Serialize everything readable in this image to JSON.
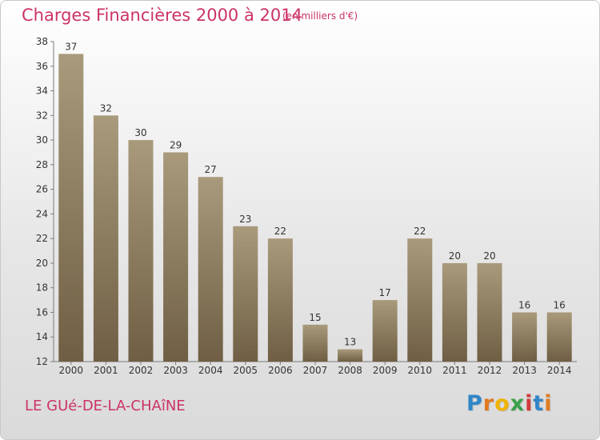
{
  "chart_data": {
    "type": "bar",
    "title": "Charges Financières 2000 à 2014",
    "subtitle": "(en milliers d'€)",
    "categories": [
      "2000",
      "2001",
      "2002",
      "2003",
      "2004",
      "2005",
      "2006",
      "2007",
      "2008",
      "2009",
      "2010",
      "2011",
      "2012",
      "2013",
      "2014"
    ],
    "values": [
      37,
      32,
      30,
      29,
      27,
      23,
      22,
      15,
      13,
      17,
      22,
      20,
      20,
      16,
      16
    ],
    "ylim": [
      12,
      38
    ],
    "yticks": [
      12,
      14,
      16,
      18,
      20,
      22,
      24,
      26,
      28,
      30,
      32,
      34,
      36,
      38
    ],
    "xlabel": "",
    "ylabel": "",
    "grid": false,
    "bar_color_top": "#a99a7c",
    "bar_color_bottom": "#6f5e43"
  },
  "footer": {
    "place": "LE GUé-DE-LA-CHAîNE",
    "brand": "Proxiti"
  },
  "colors": {
    "accent": "#cc3366"
  }
}
